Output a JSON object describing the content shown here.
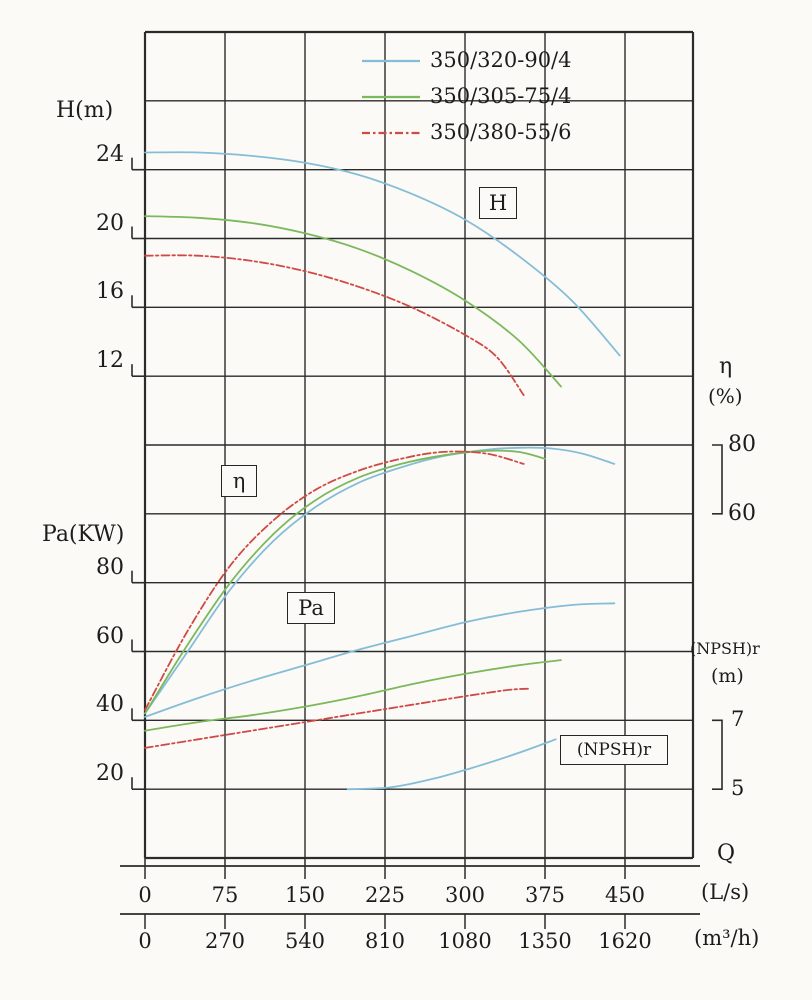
{
  "chart_data": {
    "type": "line",
    "title": "",
    "grid": true,
    "legend": {
      "position": "top-center",
      "items": [
        {
          "label": "350/320-90/4",
          "color": "#85bdd7",
          "style": "solid"
        },
        {
          "label": "350/305-75/4",
          "color": "#7cb85c",
          "style": "solid"
        },
        {
          "label": "350/380-55/6",
          "color": "#d04a45",
          "style": "dashdot"
        }
      ]
    },
    "axes": {
      "q": {
        "label": "Q",
        "range": [
          0,
          514
        ],
        "units": [
          {
            "name": "(L/s)",
            "ticks": [
              0,
              75,
              150,
              225,
              300,
              375,
              450
            ]
          },
          {
            "name": "(m³/h)",
            "ticks": [
              0,
              270,
              540,
              810,
              1080,
              1350,
              1620
            ]
          }
        ]
      },
      "h": {
        "label": "H(m)",
        "ticks": [
          24,
          20,
          16,
          12
        ]
      },
      "eta": {
        "label": "η",
        "units_label": "(%)",
        "ticks": [
          80,
          60
        ]
      },
      "pa": {
        "label": "Pa(KW)",
        "ticks": [
          80,
          60,
          40,
          20
        ]
      },
      "npshr": {
        "label": "(NPSH)r",
        "units_label": "(m)",
        "ticks": [
          7,
          5
        ]
      }
    },
    "curve_labels": [
      {
        "text": "H"
      },
      {
        "text": "η"
      },
      {
        "text": "Pa"
      },
      {
        "text": "(NPSH)r"
      }
    ],
    "series": [
      {
        "group": "H",
        "pump": "350/320-90/4",
        "axis": "h",
        "color": "#85bdd7",
        "style": "solid",
        "points": [
          [
            0,
            25
          ],
          [
            50,
            25
          ],
          [
            100,
            24.8
          ],
          [
            150,
            24.4
          ],
          [
            200,
            23.7
          ],
          [
            250,
            22.6
          ],
          [
            300,
            21.1
          ],
          [
            350,
            19.0
          ],
          [
            400,
            16.4
          ],
          [
            445,
            13.2
          ]
        ]
      },
      {
        "group": "H",
        "pump": "350/305-75/4",
        "axis": "h",
        "color": "#7cb85c",
        "style": "solid",
        "points": [
          [
            0,
            21.3
          ],
          [
            50,
            21.2
          ],
          [
            100,
            20.9
          ],
          [
            150,
            20.3
          ],
          [
            200,
            19.4
          ],
          [
            250,
            18.1
          ],
          [
            300,
            16.4
          ],
          [
            350,
            14.1
          ],
          [
            390,
            11.4
          ]
        ]
      },
      {
        "group": "H",
        "pump": "350/380-55/6",
        "axis": "h",
        "color": "#d04a45",
        "style": "dashdot",
        "points": [
          [
            0,
            19
          ],
          [
            50,
            19
          ],
          [
            100,
            18.7
          ],
          [
            150,
            18.1
          ],
          [
            200,
            17.2
          ],
          [
            250,
            16.0
          ],
          [
            300,
            14.4
          ],
          [
            330,
            13.1
          ],
          [
            355,
            10.9
          ]
        ]
      },
      {
        "group": "eta",
        "pump": "350/320-90/4",
        "axis": "eta",
        "color": "#85bdd7",
        "style": "solid",
        "points": [
          [
            0,
            2
          ],
          [
            40,
            20
          ],
          [
            80,
            38
          ],
          [
            120,
            52
          ],
          [
            160,
            62
          ],
          [
            200,
            69
          ],
          [
            240,
            73.5
          ],
          [
            280,
            76.8
          ],
          [
            320,
            78.6
          ],
          [
            350,
            79.2
          ],
          [
            380,
            79
          ],
          [
            410,
            77.5
          ],
          [
            440,
            74.5
          ]
        ]
      },
      {
        "group": "eta",
        "pump": "350/305-75/4",
        "axis": "eta",
        "color": "#7cb85c",
        "style": "solid",
        "points": [
          [
            0,
            2
          ],
          [
            40,
            22
          ],
          [
            80,
            40
          ],
          [
            120,
            54
          ],
          [
            160,
            64
          ],
          [
            200,
            70.5
          ],
          [
            240,
            74.5
          ],
          [
            280,
            77
          ],
          [
            320,
            78.3
          ],
          [
            350,
            78
          ],
          [
            375,
            76
          ]
        ]
      },
      {
        "group": "eta",
        "pump": "350/380-55/6",
        "axis": "eta",
        "color": "#d04a45",
        "style": "dashdot",
        "points": [
          [
            0,
            3
          ],
          [
            40,
            26
          ],
          [
            80,
            45
          ],
          [
            120,
            58
          ],
          [
            160,
            67
          ],
          [
            200,
            72.5
          ],
          [
            240,
            76
          ],
          [
            280,
            78
          ],
          [
            320,
            77.5
          ],
          [
            355,
            74.5
          ]
        ]
      },
      {
        "group": "Pa",
        "pump": "350/320-90/4",
        "axis": "pa",
        "color": "#85bdd7",
        "style": "solid",
        "points": [
          [
            0,
            41
          ],
          [
            50,
            46.5
          ],
          [
            100,
            51.5
          ],
          [
            150,
            56
          ],
          [
            200,
            60.5
          ],
          [
            250,
            64.5
          ],
          [
            300,
            68.5
          ],
          [
            350,
            71.5
          ],
          [
            400,
            73.5
          ],
          [
            440,
            74
          ]
        ]
      },
      {
        "group": "Pa",
        "pump": "350/305-75/4",
        "axis": "pa",
        "color": "#7cb85c",
        "style": "solid",
        "points": [
          [
            0,
            37
          ],
          [
            50,
            39.5
          ],
          [
            100,
            41.5
          ],
          [
            150,
            44
          ],
          [
            200,
            47
          ],
          [
            250,
            50.5
          ],
          [
            300,
            53.5
          ],
          [
            350,
            56
          ],
          [
            390,
            57.5
          ]
        ]
      },
      {
        "group": "Pa",
        "pump": "350/380-55/6",
        "axis": "pa",
        "color": "#d04a45",
        "style": "dashdot",
        "points": [
          [
            0,
            32
          ],
          [
            50,
            34.5
          ],
          [
            100,
            37
          ],
          [
            150,
            39.5
          ],
          [
            200,
            42
          ],
          [
            250,
            44.5
          ],
          [
            300,
            47
          ],
          [
            340,
            48.8
          ],
          [
            360,
            49.2
          ]
        ]
      },
      {
        "group": "npshr",
        "pump": "350/320-90/4",
        "axis": "npshr",
        "color": "#85bdd7",
        "style": "solid",
        "points": [
          [
            190,
            5.0
          ],
          [
            230,
            5.05
          ],
          [
            270,
            5.3
          ],
          [
            310,
            5.65
          ],
          [
            350,
            6.05
          ],
          [
            385,
            6.45
          ]
        ]
      }
    ]
  }
}
